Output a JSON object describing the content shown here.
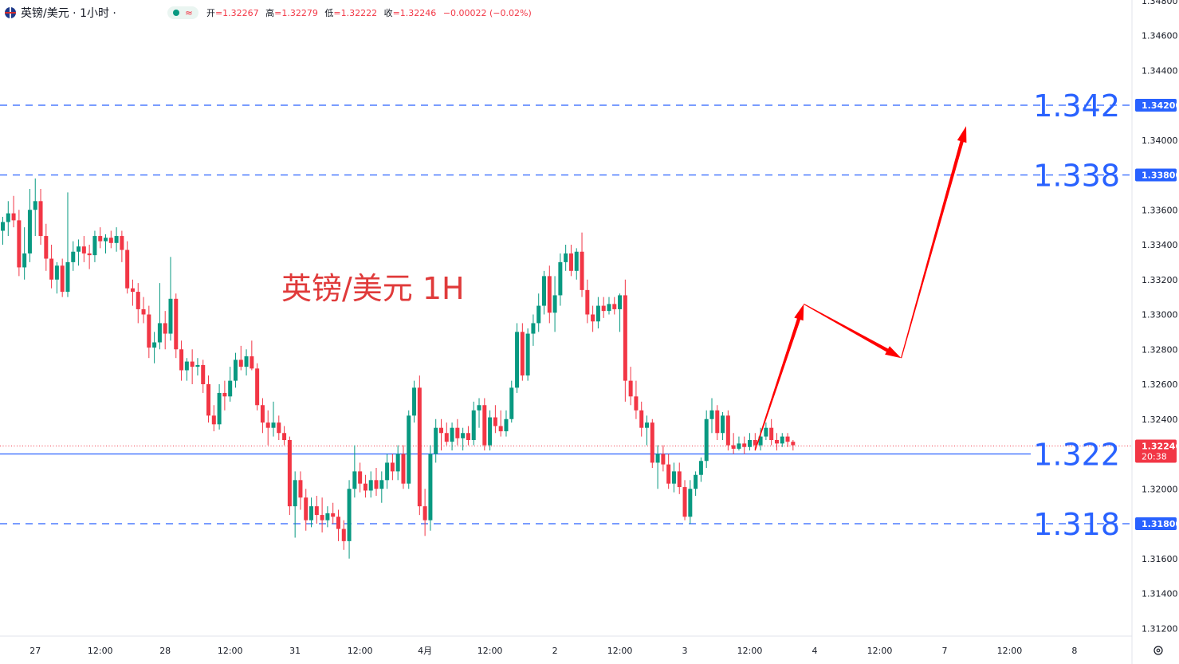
{
  "header": {
    "symbol_label": "英镑/美元 · 1小时 ·",
    "wave_glyph": "≈",
    "open_label": "开",
    "open_value": "=1.32267",
    "high_label": "高",
    "high_value": "=1.32279",
    "low_label": "低",
    "low_value": "=1.32222",
    "close_label": "收",
    "close_value": "=1.32246",
    "change": "−0.00022 (−0.02%)"
  },
  "colors": {
    "up": "#089981",
    "down": "#f23645",
    "level_line": "#2962ff",
    "big_label": "#2962ff",
    "arrow": "#ff0000",
    "annotation": "#e03a3a"
  },
  "chart_data": {
    "type": "candlestick",
    "annotation": "英镑/美元 1H",
    "y_axis": {
      "range": [
        1.3105,
        1.3488
      ],
      "ticks": [
        "1.34600",
        "1.34400",
        "1.34000",
        "1.33600",
        "1.33400",
        "1.33200",
        "1.33000",
        "1.32800",
        "1.32600",
        "1.32400",
        "1.32000",
        "1.31600",
        "1.31400",
        "1.31200"
      ],
      "partial_top_tick": "1.34800"
    },
    "x_axis": {
      "ticks": [
        {
          "label": "27",
          "t": 6
        },
        {
          "label": "12:00",
          "t": 18
        },
        {
          "label": "28",
          "t": 30
        },
        {
          "label": "12:00",
          "t": 42
        },
        {
          "label": "31",
          "t": 54
        },
        {
          "label": "12:00",
          "t": 66
        },
        {
          "label": "4月",
          "t": 78
        },
        {
          "label": "12:00",
          "t": 90
        },
        {
          "label": "2",
          "t": 102
        },
        {
          "label": "12:00",
          "t": 114
        },
        {
          "label": "3",
          "t": 126
        },
        {
          "label": "12:00",
          "t": 138
        },
        {
          "label": "4",
          "t": 150
        },
        {
          "label": "12:00",
          "t": 162
        },
        {
          "label": "7",
          "t": 174
        },
        {
          "label": "12:00",
          "t": 186
        },
        {
          "label": "8",
          "t": 198
        }
      ]
    },
    "current_price": {
      "value": 1.32246,
      "label": "1.32246",
      "countdown": "20:38"
    },
    "levels": [
      {
        "value": 1.342,
        "big_label": "1.342",
        "axis_label": "1.34200",
        "style": "dashed"
      },
      {
        "value": 1.338,
        "big_label": "1.338",
        "axis_label": "1.33800",
        "style": "dashed"
      },
      {
        "value": 1.322,
        "big_label": "1.322",
        "axis_label": "1.32200",
        "style": "solid"
      },
      {
        "value": 1.318,
        "big_label": "1.318",
        "axis_label": "1.31800",
        "style": "dashed"
      }
    ],
    "projection_path": [
      {
        "t": 139.5,
        "v": 1.3222
      },
      {
        "t": 148.5,
        "v": 1.3306
      },
      {
        "t": 166.5,
        "v": 1.3275
      },
      {
        "t": 178.5,
        "v": 1.3408
      }
    ],
    "candles": [
      [
        1.3348,
        1.3356,
        1.334,
        1.3353
      ],
      [
        1.3353,
        1.3365,
        1.3345,
        1.3358
      ],
      [
        1.3358,
        1.3368,
        1.335,
        1.3354
      ],
      [
        1.3354,
        1.336,
        1.3322,
        1.3327
      ],
      [
        1.3327,
        1.335,
        1.332,
        1.3335
      ],
      [
        1.3335,
        1.3372,
        1.333,
        1.336
      ],
      [
        1.336,
        1.3378,
        1.3345,
        1.3365
      ],
      [
        1.3365,
        1.3372,
        1.334,
        1.3345
      ],
      [
        1.3345,
        1.3352,
        1.3325,
        1.3332
      ],
      [
        1.3332,
        1.334,
        1.3315,
        1.332
      ],
      [
        1.332,
        1.333,
        1.3312,
        1.3328
      ],
      [
        1.3328,
        1.3332,
        1.331,
        1.3313
      ],
      [
        1.3313,
        1.337,
        1.331,
        1.333
      ],
      [
        1.333,
        1.3342,
        1.3325,
        1.3336
      ],
      [
        1.3336,
        1.3343,
        1.3328,
        1.3339
      ],
      [
        1.3339,
        1.3345,
        1.333,
        1.3335
      ],
      [
        1.3335,
        1.334,
        1.3326,
        1.3334
      ],
      [
        1.3334,
        1.3348,
        1.333,
        1.3345
      ],
      [
        1.3345,
        1.335,
        1.3338,
        1.3342
      ],
      [
        1.3342,
        1.3346,
        1.3335,
        1.3344
      ],
      [
        1.3344,
        1.3348,
        1.3338,
        1.3341
      ],
      [
        1.3341,
        1.335,
        1.3336,
        1.3345
      ],
      [
        1.3345,
        1.3348,
        1.333,
        1.3337
      ],
      [
        1.3337,
        1.3342,
        1.3312,
        1.3315
      ],
      [
        1.3315,
        1.332,
        1.3305,
        1.3313
      ],
      [
        1.3313,
        1.3318,
        1.3295,
        1.3303
      ],
      [
        1.3303,
        1.331,
        1.3295,
        1.33
      ],
      [
        1.33,
        1.3305,
        1.3275,
        1.3281
      ],
      [
        1.3281,
        1.329,
        1.3272,
        1.3284
      ],
      [
        1.3284,
        1.3318,
        1.328,
        1.3295
      ],
      [
        1.3295,
        1.3302,
        1.328,
        1.3289
      ],
      [
        1.3289,
        1.3333,
        1.3285,
        1.3309
      ],
      [
        1.3309,
        1.3312,
        1.3275,
        1.328
      ],
      [
        1.328,
        1.3285,
        1.3262,
        1.3268
      ],
      [
        1.3268,
        1.3275,
        1.3262,
        1.3273
      ],
      [
        1.3273,
        1.328,
        1.326,
        1.327
      ],
      [
        1.327,
        1.3275,
        1.3265,
        1.3271
      ],
      [
        1.3271,
        1.3274,
        1.3255,
        1.326
      ],
      [
        1.326,
        1.3265,
        1.3238,
        1.3242
      ],
      [
        1.3242,
        1.3248,
        1.3233,
        1.3237
      ],
      [
        1.3237,
        1.326,
        1.3234,
        1.3255
      ],
      [
        1.3255,
        1.3262,
        1.3245,
        1.3253
      ],
      [
        1.3253,
        1.327,
        1.325,
        1.3262
      ],
      [
        1.3262,
        1.3278,
        1.3258,
        1.3274
      ],
      [
        1.3274,
        1.3282,
        1.3268,
        1.327
      ],
      [
        1.327,
        1.328,
        1.3265,
        1.3276
      ],
      [
        1.3276,
        1.3285,
        1.3268,
        1.3269
      ],
      [
        1.3269,
        1.3272,
        1.3245,
        1.3248
      ],
      [
        1.3248,
        1.3252,
        1.3232,
        1.3238
      ],
      [
        1.3238,
        1.3245,
        1.3225,
        1.3235
      ],
      [
        1.3235,
        1.325,
        1.323,
        1.3238
      ],
      [
        1.3238,
        1.3242,
        1.3228,
        1.3232
      ],
      [
        1.3232,
        1.3236,
        1.3225,
        1.3228
      ],
      [
        1.3228,
        1.323,
        1.3185,
        1.319
      ],
      [
        1.319,
        1.321,
        1.3172,
        1.3205
      ],
      [
        1.3205,
        1.321,
        1.3188,
        1.3195
      ],
      [
        1.3195,
        1.32,
        1.3176,
        1.3182
      ],
      [
        1.3182,
        1.3195,
        1.3178,
        1.319
      ],
      [
        1.319,
        1.3196,
        1.318,
        1.3185
      ],
      [
        1.3185,
        1.3195,
        1.3175,
        1.3182
      ],
      [
        1.3182,
        1.319,
        1.3178,
        1.3186
      ],
      [
        1.3186,
        1.3192,
        1.318,
        1.3184
      ],
      [
        1.3184,
        1.3188,
        1.317,
        1.3177
      ],
      [
        1.3177,
        1.3182,
        1.3165,
        1.317
      ],
      [
        1.317,
        1.3205,
        1.316,
        1.32
      ],
      [
        1.32,
        1.3225,
        1.3195,
        1.321
      ],
      [
        1.321,
        1.3215,
        1.3198,
        1.3203
      ],
      [
        1.3203,
        1.3208,
        1.3195,
        1.3199
      ],
      [
        1.3199,
        1.321,
        1.3195,
        1.3205
      ],
      [
        1.3205,
        1.3212,
        1.3196,
        1.32
      ],
      [
        1.32,
        1.321,
        1.3192,
        1.3205
      ],
      [
        1.3205,
        1.322,
        1.32,
        1.3215
      ],
      [
        1.3215,
        1.322,
        1.3205,
        1.321
      ],
      [
        1.321,
        1.3225,
        1.3205,
        1.322
      ],
      [
        1.322,
        1.3225,
        1.32,
        1.3203
      ],
      [
        1.3203,
        1.3245,
        1.32,
        1.3242
      ],
      [
        1.3242,
        1.3262,
        1.3238,
        1.3258
      ],
      [
        1.3258,
        1.3265,
        1.3185,
        1.319
      ],
      [
        1.319,
        1.32,
        1.3173,
        1.3182
      ],
      [
        1.3182,
        1.3225,
        1.3176,
        1.322
      ],
      [
        1.322,
        1.324,
        1.3215,
        1.3235
      ],
      [
        1.3235,
        1.324,
        1.3222,
        1.3232
      ],
      [
        1.3232,
        1.3238,
        1.3225,
        1.3227
      ],
      [
        1.3227,
        1.3238,
        1.3222,
        1.3235
      ],
      [
        1.3235,
        1.324,
        1.3225,
        1.3229
      ],
      [
        1.3229,
        1.3235,
        1.3222,
        1.3232
      ],
      [
        1.3232,
        1.3236,
        1.3225,
        1.3228
      ],
      [
        1.3228,
        1.325,
        1.3225,
        1.3245
      ],
      [
        1.3245,
        1.3252,
        1.3235,
        1.3248
      ],
      [
        1.3248,
        1.3252,
        1.3222,
        1.3225
      ],
      [
        1.3225,
        1.3245,
        1.3222,
        1.3241
      ],
      [
        1.3241,
        1.3248,
        1.3232,
        1.3236
      ],
      [
        1.3236,
        1.3245,
        1.323,
        1.3233
      ],
      [
        1.3233,
        1.3245,
        1.323,
        1.324
      ],
      [
        1.324,
        1.3262,
        1.3238,
        1.3258
      ],
      [
        1.3258,
        1.3295,
        1.3255,
        1.329
      ],
      [
        1.329,
        1.3295,
        1.3262,
        1.3265
      ],
      [
        1.3265,
        1.3292,
        1.3262,
        1.3289
      ],
      [
        1.3289,
        1.33,
        1.3282,
        1.3295
      ],
      [
        1.3295,
        1.3312,
        1.329,
        1.3305
      ],
      [
        1.3305,
        1.3325,
        1.33,
        1.3322
      ],
      [
        1.3322,
        1.3328,
        1.3295,
        1.3301
      ],
      [
        1.3301,
        1.3322,
        1.329,
        1.3311
      ],
      [
        1.3311,
        1.3335,
        1.3305,
        1.333
      ],
      [
        1.333,
        1.334,
        1.3325,
        1.3335
      ],
      [
        1.3335,
        1.334,
        1.3322,
        1.3325
      ],
      [
        1.3325,
        1.3338,
        1.332,
        1.3336
      ],
      [
        1.3336,
        1.3347,
        1.331,
        1.3314
      ],
      [
        1.3314,
        1.332,
        1.3295,
        1.33
      ],
      [
        1.33,
        1.3305,
        1.329,
        1.3296
      ],
      [
        1.3296,
        1.331,
        1.3292,
        1.3305
      ],
      [
        1.3305,
        1.331,
        1.3298,
        1.3302
      ],
      [
        1.3302,
        1.331,
        1.33,
        1.3306
      ],
      [
        1.3306,
        1.331,
        1.33,
        1.3303
      ],
      [
        1.3303,
        1.3312,
        1.329,
        1.3311
      ],
      [
        1.3311,
        1.332,
        1.325,
        1.3262
      ],
      [
        1.3262,
        1.327,
        1.3248,
        1.3253
      ],
      [
        1.3253,
        1.3262,
        1.324,
        1.3245
      ],
      [
        1.3245,
        1.325,
        1.323,
        1.3235
      ],
      [
        1.3235,
        1.3242,
        1.3225,
        1.3238
      ],
      [
        1.3238,
        1.324,
        1.3212,
        1.3215
      ],
      [
        1.3215,
        1.3225,
        1.32,
        1.322
      ],
      [
        1.322,
        1.3225,
        1.321,
        1.3214
      ],
      [
        1.3214,
        1.322,
        1.32,
        1.3203
      ],
      [
        1.3203,
        1.3215,
        1.3198,
        1.321
      ],
      [
        1.321,
        1.3215,
        1.3197,
        1.3201
      ],
      [
        1.3201,
        1.3205,
        1.3182,
        1.3184
      ],
      [
        1.3184,
        1.3205,
        1.318,
        1.32
      ],
      [
        1.32,
        1.321,
        1.3196,
        1.3208
      ],
      [
        1.3208,
        1.3218,
        1.3204,
        1.3216
      ],
      [
        1.3216,
        1.3245,
        1.3212,
        1.324
      ],
      [
        1.324,
        1.3252,
        1.3232,
        1.3245
      ],
      [
        1.3245,
        1.3248,
        1.3228,
        1.3232
      ],
      [
        1.3232,
        1.3244,
        1.3228,
        1.3242
      ],
      [
        1.3242,
        1.3245,
        1.3222,
        1.3225
      ],
      [
        1.3225,
        1.3232,
        1.322,
        1.3223
      ],
      [
        1.3223,
        1.323,
        1.3222,
        1.3226
      ],
      [
        1.3226,
        1.323,
        1.322,
        1.3224
      ],
      [
        1.3224,
        1.3232,
        1.3222,
        1.3228
      ],
      [
        1.3228,
        1.3232,
        1.3222,
        1.3225
      ],
      [
        1.3225,
        1.3235,
        1.3222,
        1.323
      ],
      [
        1.323,
        1.3238,
        1.3228,
        1.3235
      ],
      [
        1.3235,
        1.324,
        1.3225,
        1.3228
      ],
      [
        1.3228,
        1.3232,
        1.3222,
        1.3226
      ],
      [
        1.3226,
        1.3232,
        1.3224,
        1.323
      ],
      [
        1.323,
        1.3232,
        1.3224,
        1.3227
      ],
      [
        1.3227,
        1.3228,
        1.3222,
        1.3225
      ]
    ]
  }
}
